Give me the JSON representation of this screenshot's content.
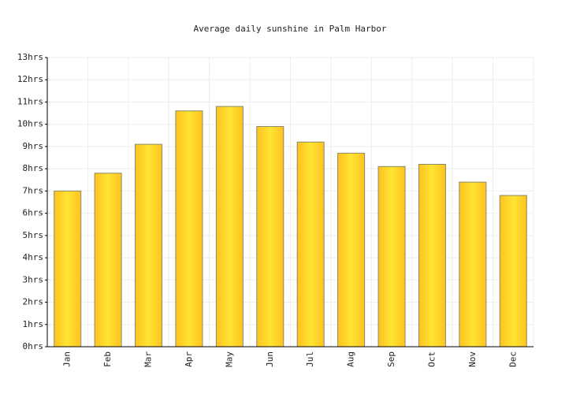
{
  "chart_data": {
    "type": "bar",
    "title": "Average daily sunshine in Palm Harbor",
    "categories": [
      "Jan",
      "Feb",
      "Mar",
      "Apr",
      "May",
      "Jun",
      "Jul",
      "Aug",
      "Sep",
      "Oct",
      "Nov",
      "Dec"
    ],
    "values": [
      7.0,
      7.8,
      9.1,
      10.6,
      10.8,
      9.9,
      9.2,
      8.7,
      8.1,
      8.2,
      7.4,
      6.8
    ],
    "color": "#ffe433",
    "ylim": [
      0,
      13
    ],
    "yticks": [
      {
        "value": 0,
        "label": "0hrs"
      },
      {
        "value": 1,
        "label": "1hrs"
      },
      {
        "value": 2,
        "label": "2hrs"
      },
      {
        "value": 3,
        "label": "3hrs"
      },
      {
        "value": 4,
        "label": "4hrs"
      },
      {
        "value": 5,
        "label": "5hrs"
      },
      {
        "value": 6,
        "label": "6hrs"
      },
      {
        "value": 7,
        "label": "7hrs"
      },
      {
        "value": 8,
        "label": "8hrs"
      },
      {
        "value": 9,
        "label": "9hrs"
      },
      {
        "value": 10,
        "label": "10hrs"
      },
      {
        "value": 11,
        "label": "11hrs"
      },
      {
        "value": 12,
        "label": "12hrs"
      },
      {
        "value": 13,
        "label": "13hrs"
      }
    ],
    "grid": true
  }
}
